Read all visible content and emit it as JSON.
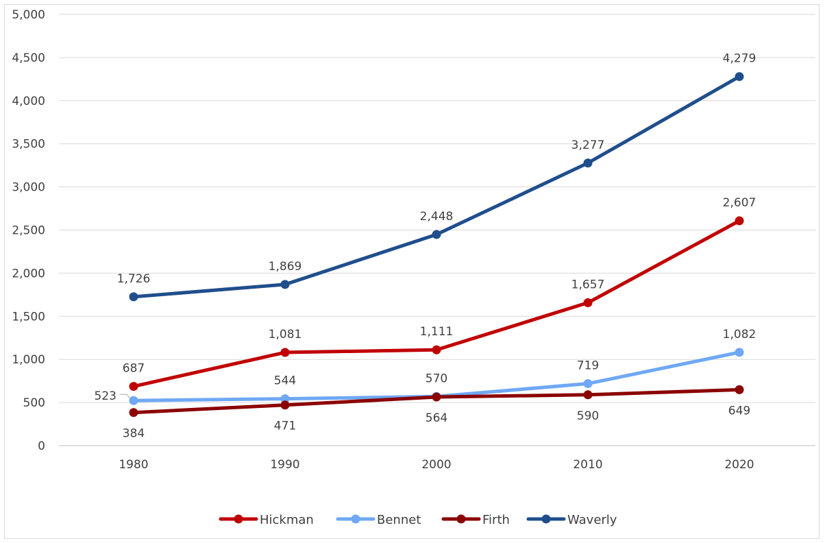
{
  "chart_data": {
    "type": "line",
    "title": "",
    "xlabel": "",
    "ylabel": "",
    "categories": [
      "1980",
      "1990",
      "2000",
      "2010",
      "2020"
    ],
    "ylim": [
      0,
      5000
    ],
    "yticks": [
      0,
      500,
      1000,
      1500,
      2000,
      2500,
      3000,
      3500,
      4000,
      4500,
      5000
    ],
    "ytick_labels": [
      "0",
      "500",
      "1,000",
      "1,500",
      "2,000",
      "2,500",
      "3,000",
      "3,500",
      "4,000",
      "4,500",
      "5,000"
    ],
    "grid": true,
    "legend_position": "bottom",
    "series": [
      {
        "name": "Hickman",
        "color": "#c00000",
        "values": [
          687,
          1081,
          1111,
          1657,
          2607
        ],
        "labels": [
          "687",
          "1,081",
          "1,111",
          "1,657",
          "2,607"
        ],
        "label_pos": [
          "above",
          "above",
          "above",
          "above",
          "above"
        ]
      },
      {
        "name": "Bennet",
        "color": "#6fa8f5",
        "values": [
          523,
          544,
          570,
          719,
          1082
        ],
        "labels": [
          "523",
          "544",
          "570",
          "719",
          "1,082"
        ],
        "label_pos": [
          "left",
          "above",
          "above",
          "above",
          "above"
        ]
      },
      {
        "name": "Firth",
        "color": "#8b0000",
        "values": [
          384,
          471,
          564,
          590,
          649
        ],
        "labels": [
          "384",
          "471",
          "564",
          "590",
          "649"
        ],
        "label_pos": [
          "below",
          "below",
          "below",
          "below",
          "below"
        ]
      },
      {
        "name": "Waverly",
        "color": "#1f4e8c",
        "values": [
          1726,
          1869,
          2448,
          3277,
          4279
        ],
        "labels": [
          "1,726",
          "1,869",
          "2,448",
          "3,277",
          "4,279"
        ],
        "label_pos": [
          "above",
          "above",
          "above",
          "above",
          "above"
        ]
      }
    ]
  }
}
